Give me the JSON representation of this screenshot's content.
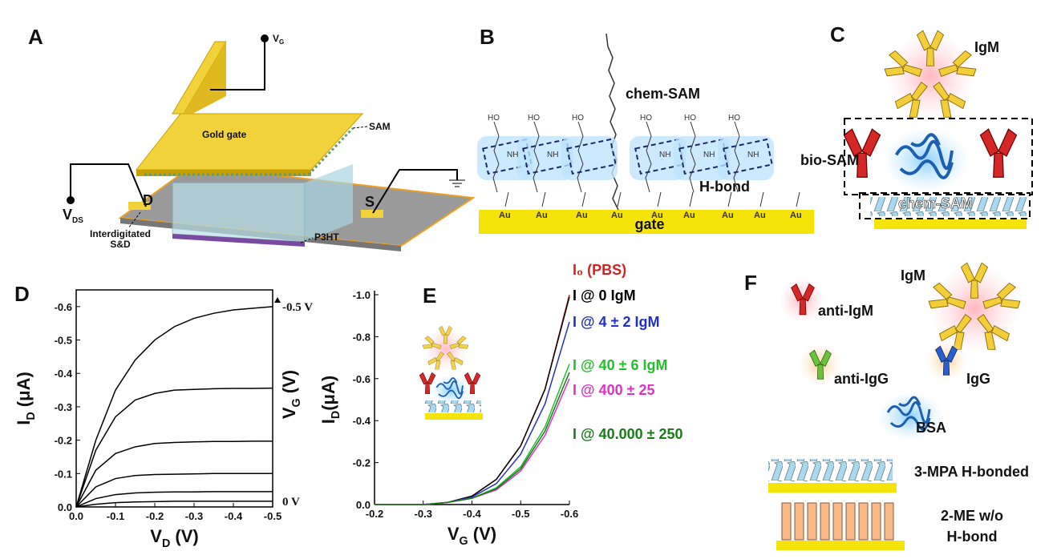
{
  "figure": {
    "A": {
      "label": "A",
      "vg": {
        "main": "V",
        "sub": "G"
      },
      "sam": "SAM",
      "gold_gate": "Gold gate",
      "d": "D",
      "s": "S",
      "vds": {
        "main": "V",
        "sub": "DS"
      },
      "interdigitated": [
        "Interdigitated",
        "S&D"
      ],
      "p3ht": "P3HT"
    },
    "B": {
      "label": "B",
      "chem_sam": "chem-SAM",
      "h_bond": "H-bond",
      "gate": "gate",
      "au": [
        "Au",
        "Au",
        "Au",
        "Au",
        "Au",
        "Au",
        "Au",
        "Au",
        "Au"
      ],
      "ho": [
        "HO",
        "HO",
        "HO",
        "HO",
        "HO",
        "HO"
      ],
      "nh": [
        "NH",
        "NH",
        "NH",
        "NH",
        "NH"
      ]
    },
    "C": {
      "label": "C",
      "igm": "IgM",
      "bio_sam": "bio-SAM",
      "chem_sam": "chem-SAM"
    },
    "F": {
      "label": "F",
      "igm": "IgM",
      "anti_igm": "anti-IgM",
      "anti_igg": "anti-IgG",
      "igg": "IgG",
      "bsa": "BSA",
      "mpa": "3-MPA H-bonded",
      "me": [
        "2-ME w/o",
        "H-bond"
      ]
    }
  },
  "chart_data": [
    {
      "type": "line",
      "panel_label": "D",
      "x_label": {
        "main": "V",
        "sub": "D",
        "rest": " (V)"
      },
      "y_label": {
        "main": "I",
        "sub": "D",
        "rest": " (μA)"
      },
      "right_label": {
        "main": "V",
        "sub": "G",
        "rest": " (V)"
      },
      "annotations": [
        "-0.5 V",
        "0 V"
      ],
      "xlim": [
        0,
        -0.5
      ],
      "ylim": [
        0,
        -0.65
      ],
      "xticks": [
        {
          "value": 0,
          "label": "0.0"
        },
        -0.1,
        -0.2,
        -0.3,
        -0.4,
        -0.5
      ],
      "yticks": [
        {
          "value": 0,
          "label": "0.0"
        },
        -0.1,
        -0.2,
        -0.3,
        -0.4,
        -0.5,
        -0.6
      ],
      "x": [
        0,
        -0.05,
        -0.1,
        -0.15,
        -0.2,
        -0.25,
        -0.3,
        -0.35,
        -0.4,
        -0.45,
        -0.5
      ],
      "series": [
        {
          "color": "#000000",
          "values": [
            0,
            -0.2,
            -0.35,
            -0.44,
            -0.5,
            -0.54,
            -0.565,
            -0.58,
            -0.59,
            -0.595,
            -0.6
          ]
        },
        {
          "color": "#000000",
          "values": [
            0,
            -0.17,
            -0.27,
            -0.32,
            -0.34,
            -0.35,
            -0.352,
            -0.354,
            -0.355,
            -0.355,
            -0.356
          ]
        },
        {
          "color": "#000000",
          "values": [
            0,
            -0.11,
            -0.16,
            -0.18,
            -0.19,
            -0.193,
            -0.195,
            -0.196,
            -0.196,
            -0.197,
            -0.197
          ]
        },
        {
          "color": "#000000",
          "values": [
            0,
            -0.06,
            -0.085,
            -0.094,
            -0.097,
            -0.098,
            -0.099,
            -0.1,
            -0.1,
            -0.1,
            -0.1
          ]
        },
        {
          "color": "#000000",
          "values": [
            0,
            -0.025,
            -0.037,
            -0.042,
            -0.044,
            -0.045,
            -0.045,
            -0.046,
            -0.046,
            -0.046,
            -0.046
          ]
        },
        {
          "color": "#000000",
          "values": [
            0,
            -0.008,
            -0.013,
            -0.015,
            -0.016,
            -0.017,
            -0.017,
            -0.017,
            -0.017,
            -0.017,
            -0.017
          ]
        }
      ]
    },
    {
      "type": "line",
      "panel_label": "E",
      "x_label": {
        "main": "V",
        "sub": "G",
        "rest": " (V)"
      },
      "y_label": {
        "main": "I",
        "sub": "D",
        "rest": "(μA)"
      },
      "xlim": [
        -0.2,
        -0.6
      ],
      "ylim": [
        0,
        -1.0
      ],
      "xticks": [
        -0.2,
        -0.3,
        -0.4,
        -0.5,
        -0.6
      ],
      "yticks": [
        {
          "value": 0,
          "label": "0.0"
        },
        -0.2,
        -0.4,
        -0.6,
        -0.8,
        {
          "value": -1.0,
          "label": "-1.0"
        }
      ],
      "x": [
        -0.2,
        -0.25,
        -0.3,
        -0.35,
        -0.4,
        -0.45,
        -0.5,
        -0.55,
        -0.6
      ],
      "series": [
        {
          "name": "I₀ (PBS)",
          "color": "#d42020",
          "values": [
            0,
            0,
            0,
            -0.01,
            -0.04,
            -0.12,
            -0.28,
            -0.55,
            -1.0
          ]
        },
        {
          "name": "I @ 0 IgM",
          "color": "#000000",
          "values": [
            0,
            0,
            0,
            -0.01,
            -0.04,
            -0.12,
            -0.28,
            -0.55,
            -0.99
          ]
        },
        {
          "name": "I @ 4 ± 2 IgM",
          "color": "#2030c8",
          "values": [
            0,
            0,
            0,
            -0.01,
            -0.035,
            -0.1,
            -0.24,
            -0.48,
            -0.87
          ]
        },
        {
          "name": "I @ 40 ± 6 IgM",
          "color": "#22c02a",
          "values": [
            0,
            0,
            0,
            -0.01,
            -0.03,
            -0.08,
            -0.18,
            -0.37,
            -0.67
          ]
        },
        {
          "name": "I @ 400 ± 25",
          "color": "#e030c8",
          "values": [
            0,
            0,
            0,
            -0.01,
            -0.03,
            -0.07,
            -0.16,
            -0.33,
            -0.6
          ]
        },
        {
          "name": "I @ 40.000 ± 250",
          "color": "#1a7a1a",
          "values": [
            0,
            0,
            0,
            -0.01,
            -0.03,
            -0.075,
            -0.17,
            -0.35,
            -0.63
          ]
        }
      ]
    }
  ]
}
